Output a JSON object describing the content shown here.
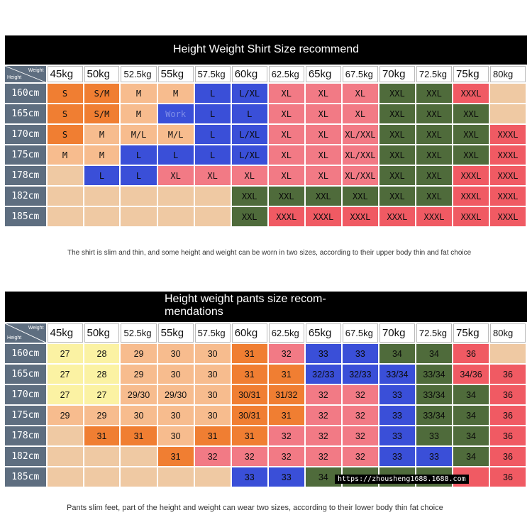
{
  "shirt": {
    "title": "Height Weight Shirt Size recommend",
    "corner_height": "Height",
    "corner_weight": "Weight",
    "weights": [
      "45kg",
      "50kg",
      "52.5kg",
      "55kg",
      "57.5kg",
      "60kg",
      "62.5kg",
      "65kg",
      "67.5kg",
      "70kg",
      "72.5kg",
      "75kg",
      "80kg"
    ],
    "rows": [
      {
        "height": "160cm",
        "cells": [
          {
            "t": "S",
            "c": "#f07e32"
          },
          {
            "t": "S/M",
            "c": "#f07e32"
          },
          {
            "t": "M",
            "c": "#f7bc8e"
          },
          {
            "t": "M",
            "c": "#f7bc8e"
          },
          {
            "t": "L",
            "c": "#3a4fd8"
          },
          {
            "t": "L/XL",
            "c": "#3a4fd8"
          },
          {
            "t": "XL",
            "c": "#f27a85"
          },
          {
            "t": "XL",
            "c": "#f27a85"
          },
          {
            "t": "XL",
            "c": "#f27a85"
          },
          {
            "t": "XXL",
            "c": "#4f6b3b"
          },
          {
            "t": "XXL",
            "c": "#4f6b3b"
          },
          {
            "t": "XXXL",
            "c": "#f05a63"
          },
          {
            "t": "",
            "c": "#efc9a3"
          }
        ]
      },
      {
        "height": "165cm",
        "cells": [
          {
            "t": "S",
            "c": "#f07e32"
          },
          {
            "t": "S/M",
            "c": "#f07e32"
          },
          {
            "t": "M",
            "c": "#f7bc8e"
          },
          {
            "t": "Work",
            "c": "#3a4fd8"
          },
          {
            "t": "L",
            "c": "#3a4fd8"
          },
          {
            "t": "L",
            "c": "#3a4fd8"
          },
          {
            "t": "XL",
            "c": "#f27a85"
          },
          {
            "t": "XL",
            "c": "#f27a85"
          },
          {
            "t": "XL",
            "c": "#f27a85"
          },
          {
            "t": "XXL",
            "c": "#4f6b3b"
          },
          {
            "t": "XXL",
            "c": "#4f6b3b"
          },
          {
            "t": "XXL",
            "c": "#4f6b3b"
          },
          {
            "t": "",
            "c": "#efc9a3"
          }
        ]
      },
      {
        "height": "170cm",
        "cells": [
          {
            "t": "S",
            "c": "#f07e32"
          },
          {
            "t": "M",
            "c": "#f7bc8e"
          },
          {
            "t": "M/L",
            "c": "#f7bc8e"
          },
          {
            "t": "M/L",
            "c": "#f7bc8e"
          },
          {
            "t": "L",
            "c": "#3a4fd8"
          },
          {
            "t": "L/XL",
            "c": "#3a4fd8"
          },
          {
            "t": "XL",
            "c": "#f27a85"
          },
          {
            "t": "XL",
            "c": "#f27a85"
          },
          {
            "t": "XL/XXL",
            "c": "#f27a85"
          },
          {
            "t": "XXL",
            "c": "#4f6b3b"
          },
          {
            "t": "XXL",
            "c": "#4f6b3b"
          },
          {
            "t": "XXL",
            "c": "#4f6b3b"
          },
          {
            "t": "XXXL",
            "c": "#f05a63"
          }
        ]
      },
      {
        "height": "175cm",
        "cells": [
          {
            "t": "M",
            "c": "#f7bc8e"
          },
          {
            "t": "M",
            "c": "#f7bc8e"
          },
          {
            "t": "L",
            "c": "#3a4fd8"
          },
          {
            "t": "L",
            "c": "#3a4fd8"
          },
          {
            "t": "L",
            "c": "#3a4fd8"
          },
          {
            "t": "L/XL",
            "c": "#3a4fd8"
          },
          {
            "t": "XL",
            "c": "#f27a85"
          },
          {
            "t": "XL",
            "c": "#f27a85"
          },
          {
            "t": "XL/XXL",
            "c": "#f27a85"
          },
          {
            "t": "XXL",
            "c": "#4f6b3b"
          },
          {
            "t": "XXL",
            "c": "#4f6b3b"
          },
          {
            "t": "XXL",
            "c": "#4f6b3b"
          },
          {
            "t": "XXXL",
            "c": "#f05a63"
          }
        ]
      },
      {
        "height": "178cm",
        "cells": [
          {
            "t": "",
            "c": "#efc9a3"
          },
          {
            "t": "L",
            "c": "#3a4fd8"
          },
          {
            "t": "L",
            "c": "#3a4fd8"
          },
          {
            "t": "XL",
            "c": "#f27a85"
          },
          {
            "t": "XL",
            "c": "#f27a85"
          },
          {
            "t": "XL",
            "c": "#f27a85"
          },
          {
            "t": "XL",
            "c": "#f27a85"
          },
          {
            "t": "XL",
            "c": "#f27a85"
          },
          {
            "t": "XL/XXL",
            "c": "#f27a85"
          },
          {
            "t": "XXL",
            "c": "#4f6b3b"
          },
          {
            "t": "XXL",
            "c": "#4f6b3b"
          },
          {
            "t": "XXXL",
            "c": "#f05a63"
          },
          {
            "t": "XXXL",
            "c": "#f05a63"
          }
        ]
      },
      {
        "height": "182cm",
        "cells": [
          {
            "t": "",
            "c": "#efc9a3"
          },
          {
            "t": "",
            "c": "#efc9a3"
          },
          {
            "t": "",
            "c": "#efc9a3"
          },
          {
            "t": "",
            "c": "#efc9a3"
          },
          {
            "t": "",
            "c": "#efc9a3"
          },
          {
            "t": "XXL",
            "c": "#4f6b3b"
          },
          {
            "t": "XXL",
            "c": "#4f6b3b"
          },
          {
            "t": "XXL",
            "c": "#4f6b3b"
          },
          {
            "t": "XXL",
            "c": "#4f6b3b"
          },
          {
            "t": "XXL",
            "c": "#4f6b3b"
          },
          {
            "t": "XXL",
            "c": "#4f6b3b"
          },
          {
            "t": "XXXL",
            "c": "#f05a63"
          },
          {
            "t": "XXXL",
            "c": "#f05a63"
          }
        ]
      },
      {
        "height": "185cm",
        "cells": [
          {
            "t": "",
            "c": "#efc9a3"
          },
          {
            "t": "",
            "c": "#efc9a3"
          },
          {
            "t": "",
            "c": "#efc9a3"
          },
          {
            "t": "",
            "c": "#efc9a3"
          },
          {
            "t": "",
            "c": "#efc9a3"
          },
          {
            "t": "XXL",
            "c": "#4f6b3b"
          },
          {
            "t": "XXXL",
            "c": "#f05a63"
          },
          {
            "t": "XXXL",
            "c": "#f05a63"
          },
          {
            "t": "XXXL",
            "c": "#f05a63"
          },
          {
            "t": "XXXL",
            "c": "#f05a63"
          },
          {
            "t": "XXXL",
            "c": "#f05a63"
          },
          {
            "t": "XXXL",
            "c": "#f05a63"
          },
          {
            "t": "XXXL",
            "c": "#f05a63"
          }
        ]
      }
    ],
    "note": "The shirt is slim and thin, and some height and weight can be worn in two sizes, according to their upper body thin and fat choice"
  },
  "pants": {
    "title_line1": "Height weight pants size recom-",
    "title_line2": "mendations",
    "corner_height": "Height",
    "corner_weight": "Weight",
    "weights": [
      "45kg",
      "50kg",
      "52.5kg",
      "55kg",
      "57.5kg",
      "60kg",
      "62.5kg",
      "65kg",
      "67.5kg",
      "70kg",
      "72.5kg",
      "75kg",
      "80kg"
    ],
    "rows": [
      {
        "height": "160cm",
        "cells": [
          {
            "t": "27",
            "c": "#fbf2a3"
          },
          {
            "t": "28",
            "c": "#fbf2a3"
          },
          {
            "t": "29",
            "c": "#f7bc8e"
          },
          {
            "t": "30",
            "c": "#f7bc8e"
          },
          {
            "t": "30",
            "c": "#f7bc8e"
          },
          {
            "t": "31",
            "c": "#f07e32"
          },
          {
            "t": "32",
            "c": "#f27a85"
          },
          {
            "t": "33",
            "c": "#3a4fd8"
          },
          {
            "t": "33",
            "c": "#3a4fd8"
          },
          {
            "t": "34",
            "c": "#4f6b3b"
          },
          {
            "t": "34",
            "c": "#4f6b3b"
          },
          {
            "t": "36",
            "c": "#f05a63"
          },
          {
            "t": "",
            "c": "#efc9a3"
          }
        ]
      },
      {
        "height": "165cm",
        "cells": [
          {
            "t": "27",
            "c": "#fbf2a3"
          },
          {
            "t": "28",
            "c": "#fbf2a3"
          },
          {
            "t": "29",
            "c": "#f7bc8e"
          },
          {
            "t": "30",
            "c": "#f7bc8e"
          },
          {
            "t": "30",
            "c": "#f7bc8e"
          },
          {
            "t": "31",
            "c": "#f07e32"
          },
          {
            "t": "31",
            "c": "#f07e32"
          },
          {
            "t": "32/33",
            "c": "#3a4fd8"
          },
          {
            "t": "32/33",
            "c": "#3a4fd8"
          },
          {
            "t": "33/34",
            "c": "#3a4fd8"
          },
          {
            "t": "33/34",
            "c": "#4f6b3b"
          },
          {
            "t": "34/36",
            "c": "#f05a63"
          },
          {
            "t": "36",
            "c": "#f05a63"
          }
        ]
      },
      {
        "height": "170cm",
        "cells": [
          {
            "t": "27",
            "c": "#fbf2a3"
          },
          {
            "t": "27",
            "c": "#fbf2a3"
          },
          {
            "t": "29/30",
            "c": "#f7bc8e"
          },
          {
            "t": "29/30",
            "c": "#f7bc8e"
          },
          {
            "t": "30",
            "c": "#f7bc8e"
          },
          {
            "t": "30/31",
            "c": "#f07e32"
          },
          {
            "t": "31/32",
            "c": "#f07e32"
          },
          {
            "t": "32",
            "c": "#f27a85"
          },
          {
            "t": "32",
            "c": "#f27a85"
          },
          {
            "t": "33",
            "c": "#3a4fd8"
          },
          {
            "t": "33/34",
            "c": "#4f6b3b"
          },
          {
            "t": "34",
            "c": "#4f6b3b"
          },
          {
            "t": "36",
            "c": "#f05a63"
          }
        ]
      },
      {
        "height": "175cm",
        "cells": [
          {
            "t": "29",
            "c": "#f7bc8e"
          },
          {
            "t": "29",
            "c": "#f7bc8e"
          },
          {
            "t": "30",
            "c": "#f7bc8e"
          },
          {
            "t": "30",
            "c": "#f7bc8e"
          },
          {
            "t": "30",
            "c": "#f7bc8e"
          },
          {
            "t": "30/31",
            "c": "#f07e32"
          },
          {
            "t": "31",
            "c": "#f07e32"
          },
          {
            "t": "32",
            "c": "#f27a85"
          },
          {
            "t": "32",
            "c": "#f27a85"
          },
          {
            "t": "33",
            "c": "#3a4fd8"
          },
          {
            "t": "33/34",
            "c": "#4f6b3b"
          },
          {
            "t": "34",
            "c": "#4f6b3b"
          },
          {
            "t": "36",
            "c": "#f05a63"
          }
        ]
      },
      {
        "height": "178cm",
        "cells": [
          {
            "t": "",
            "c": "#efc9a3"
          },
          {
            "t": "31",
            "c": "#f07e32"
          },
          {
            "t": "31",
            "c": "#f07e32"
          },
          {
            "t": "30",
            "c": "#f7bc8e"
          },
          {
            "t": "31",
            "c": "#f07e32"
          },
          {
            "t": "31",
            "c": "#f07e32"
          },
          {
            "t": "32",
            "c": "#f27a85"
          },
          {
            "t": "32",
            "c": "#f27a85"
          },
          {
            "t": "32",
            "c": "#f27a85"
          },
          {
            "t": "33",
            "c": "#3a4fd8"
          },
          {
            "t": "33",
            "c": "#4f6b3b"
          },
          {
            "t": "34",
            "c": "#4f6b3b"
          },
          {
            "t": "36",
            "c": "#f05a63"
          }
        ]
      },
      {
        "height": "182cm",
        "cells": [
          {
            "t": "",
            "c": "#efc9a3"
          },
          {
            "t": "",
            "c": "#efc9a3"
          },
          {
            "t": "",
            "c": "#efc9a3"
          },
          {
            "t": "31",
            "c": "#f07e32"
          },
          {
            "t": "32",
            "c": "#f27a85"
          },
          {
            "t": "32",
            "c": "#f27a85"
          },
          {
            "t": "32",
            "c": "#f27a85"
          },
          {
            "t": "32",
            "c": "#f27a85"
          },
          {
            "t": "32",
            "c": "#f27a85"
          },
          {
            "t": "33",
            "c": "#3a4fd8"
          },
          {
            "t": "33",
            "c": "#3a4fd8"
          },
          {
            "t": "34",
            "c": "#4f6b3b"
          },
          {
            "t": "36",
            "c": "#f05a63"
          }
        ]
      },
      {
        "height": "185cm",
        "cells": [
          {
            "t": "",
            "c": "#efc9a3"
          },
          {
            "t": "",
            "c": "#efc9a3"
          },
          {
            "t": "",
            "c": "#efc9a3"
          },
          {
            "t": "",
            "c": "#efc9a3"
          },
          {
            "t": "",
            "c": "#efc9a3"
          },
          {
            "t": "33",
            "c": "#3a4fd8"
          },
          {
            "t": "33",
            "c": "#3a4fd8"
          },
          {
            "t": "34",
            "c": "#4f6b3b"
          },
          {
            "t": "",
            "c": "#4f6b3b"
          },
          {
            "t": "",
            "c": "#4f6b3b"
          },
          {
            "t": "",
            "c": "#4f6b3b"
          },
          {
            "t": "",
            "c": "#f05a63"
          },
          {
            "t": "36",
            "c": "#f05a63"
          }
        ]
      }
    ],
    "note": "Pants slim feet, part of the height and weight can wear two sizes, according to their lower body thin fat choice"
  },
  "watermark": "https://zhousheng1688.1688.com"
}
